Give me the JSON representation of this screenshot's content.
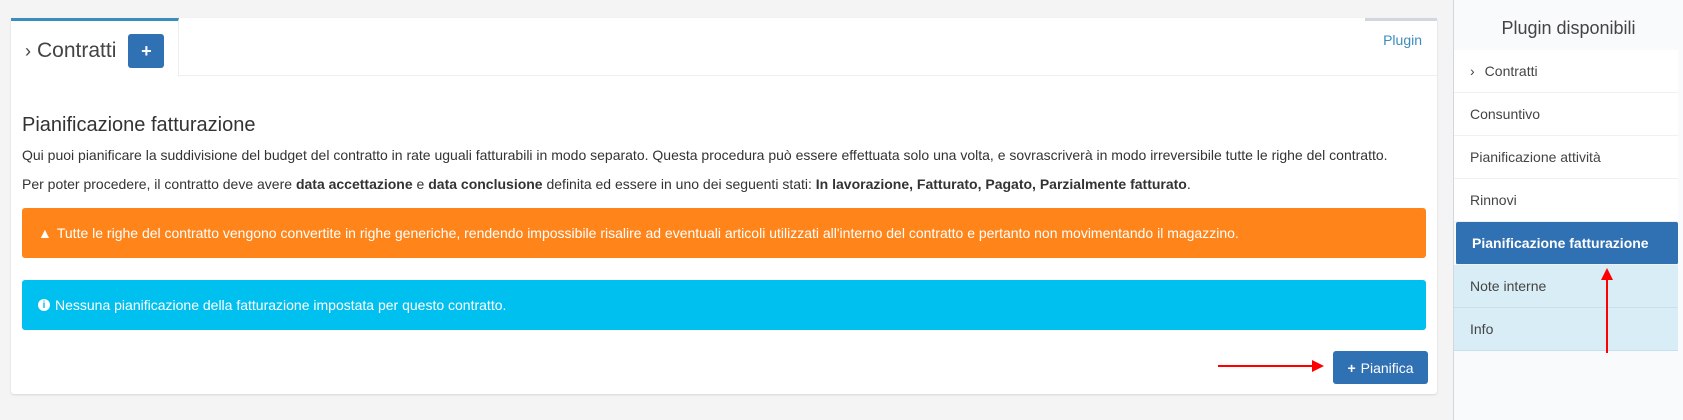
{
  "panel": {
    "tab_title": "Contratti",
    "tab_add_label": "+",
    "plugin_link": "Plugin",
    "heading": "Pianificazione fatturazione",
    "intro": "Qui puoi pianificare la suddivisione del budget del contratto in rate uguali fatturabili in modo separato. Questa procedura può essere effettuata solo una volta, e sovrascriverà in modo irreversibile tutte le righe del contratto.",
    "req_1": "Per poter procedere, il contratto deve avere ",
    "req_b1": "data accettazione",
    "req_2": " e ",
    "req_b2": "data conclusione",
    "req_3": " definita ed essere in uno dei seguenti stati: ",
    "req_b3": "In lavorazione, Fatturato, Pagato, Parzialmente fatturato",
    "req_4": ".",
    "warning": "Tutte le righe del contratto vengono convertite in righe generiche, rendendo impossibile risalire ad eventuali articoli utilizzati all'interno del contratto e pertanto non movimentando il magazzino.",
    "info": "Nessuna pianificazione della fatturazione impostata per questo contratto.",
    "pianifica_label": "Pianifica"
  },
  "sidebar": {
    "title": "Plugin disponibili",
    "items": [
      {
        "label": "Contratti"
      },
      {
        "label": "Consuntivo"
      },
      {
        "label": "Pianificazione attività"
      },
      {
        "label": "Rinnovi"
      },
      {
        "label": "Pianificazione fatturazione",
        "active": true
      },
      {
        "label": "Note interne"
      },
      {
        "label": "Info"
      }
    ]
  },
  "colors": {
    "primary": "#3071b4",
    "warning": "#ff851b",
    "info": "#00c0ef",
    "annotation": "#ff0000"
  }
}
